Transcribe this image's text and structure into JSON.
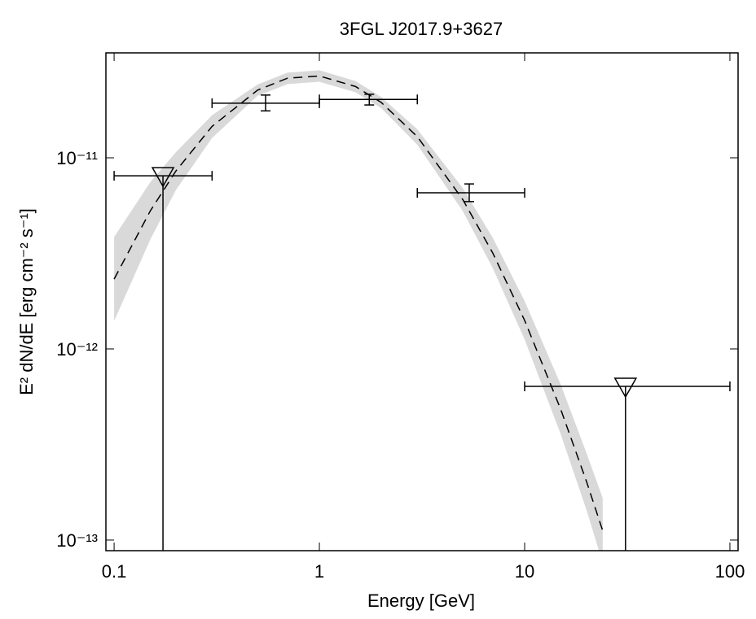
{
  "chart_data": {
    "type": "scatter",
    "title": "3FGL J2017.9+3627",
    "xlabel": "Energy [GeV]",
    "ylabel": "E² dN/dE [erg cm⁻² s⁻¹]",
    "xscale": "log",
    "yscale": "log",
    "xlim": [
      0.0912,
      109.6
    ],
    "ylim": [
      8.8e-14,
      3.54e-11
    ],
    "xticks": [
      0.1,
      1,
      10,
      100
    ],
    "yticks": [
      {
        "value": 1e-13,
        "label": "10⁻¹³"
      },
      {
        "value": 1e-12,
        "label": "10⁻¹²"
      },
      {
        "value": 1e-11,
        "label": "10⁻¹¹"
      }
    ],
    "model": {
      "color": "#000000",
      "band_color": "#d9d9d9",
      "x": [
        0.1,
        0.15,
        0.2,
        0.3,
        0.5,
        0.7,
        1,
        1.5,
        2,
        3,
        5,
        7,
        10,
        15,
        20,
        24
      ],
      "y": [
        2.32e-12,
        5.27e-12,
        8.53e-12,
        1.46e-11,
        2.26e-11,
        2.61e-11,
        2.68e-11,
        2.36e-11,
        1.95e-11,
        1.29e-11,
        6.04e-12,
        3.17e-12,
        1.41e-12,
        4.82e-13,
        2.03e-13,
        1.12e-13
      ],
      "band_high": [
        3.85e-12,
        7.45e-12,
        1.07e-11,
        1.67e-11,
        2.42e-11,
        2.79e-11,
        2.87e-11,
        2.52e-11,
        2.08e-11,
        1.41e-11,
        6.93e-12,
        3.81e-12,
        1.78e-12,
        6.5e-13,
        2.86e-13,
        1.66e-13
      ],
      "band_low": [
        1.4e-12,
        3.73e-12,
        6.78e-12,
        1.27e-11,
        2.11e-11,
        2.43e-11,
        2.5e-11,
        2.2e-11,
        1.82e-11,
        1.17e-11,
        5.26e-12,
        2.64e-12,
        1.12e-12,
        3.57e-13,
        1.44e-13,
        7.6e-14
      ]
    },
    "points": {
      "color": "#000000",
      "x": [
        0.173,
        0.547,
        1.75,
        5.37,
        31.0
      ],
      "y": [
        8.05e-12,
        1.93e-11,
        2.02e-11,
        6.56e-12,
        6.37e-13
      ],
      "xlow": [
        0.1,
        0.3,
        1,
        3,
        10
      ],
      "xhigh": [
        0.3,
        1,
        3,
        10,
        100
      ],
      "ylow": [
        null,
        1.76e-11,
        1.89e-11,
        5.9e-12,
        null
      ],
      "yhigh": [
        null,
        2.13e-11,
        2.15e-11,
        7.3e-12,
        null
      ],
      "upper_limit": [
        true,
        false,
        false,
        false,
        true
      ]
    }
  }
}
